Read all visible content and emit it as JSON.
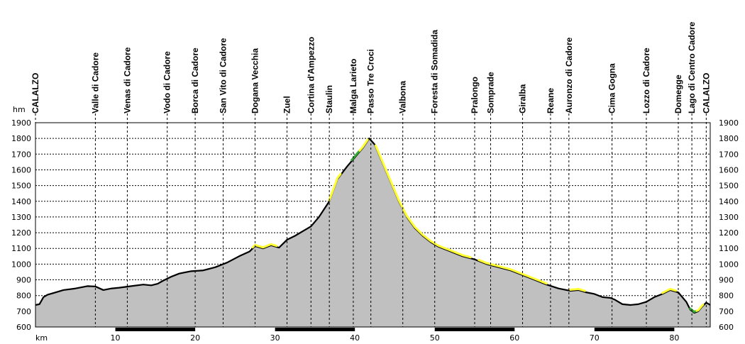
{
  "chart_data": {
    "type": "area",
    "title": "",
    "xlabel": "km",
    "ylabel": "hm",
    "xlim": [
      0,
      84.5
    ],
    "ylim": [
      600,
      1900
    ],
    "x_ticks": [
      10,
      20,
      30,
      40,
      50,
      60,
      70,
      80
    ],
    "y_ticks": [
      600,
      700,
      800,
      900,
      1000,
      1100,
      1200,
      1300,
      1400,
      1500,
      1600,
      1700,
      1800,
      1900
    ],
    "grid": "dashed",
    "fill_color": "#c0c0c0",
    "line_color": "#000000",
    "climb_color": "#ffff33",
    "flat_color": "#33aa33",
    "places": [
      {
        "km": 0,
        "name": "CALALZO"
      },
      {
        "km": 7.5,
        "name": "Valle di Cadore"
      },
      {
        "km": 11.5,
        "name": "Venas di Cadore"
      },
      {
        "km": 16.5,
        "name": "Vodo di Cadore"
      },
      {
        "km": 20.0,
        "name": "Borca di Cadore"
      },
      {
        "km": 23.5,
        "name": "San Vito di Cadore"
      },
      {
        "km": 27.5,
        "name": "Dogana Vecchia"
      },
      {
        "km": 31.5,
        "name": "Zuel"
      },
      {
        "km": 34.5,
        "name": "Cortina d'Ampezzo"
      },
      {
        "km": 36.8,
        "name": "Staulin"
      },
      {
        "km": 39.8,
        "name": "Malga Larieto"
      },
      {
        "km": 42.0,
        "name": "Passo Tre Croci"
      },
      {
        "km": 46.0,
        "name": "Valbona"
      },
      {
        "km": 50.0,
        "name": "Foresta di Somadida"
      },
      {
        "km": 55.0,
        "name": "Pralongo"
      },
      {
        "km": 57.0,
        "name": "Somprade"
      },
      {
        "km": 61.0,
        "name": "Giralba"
      },
      {
        "km": 64.5,
        "name": "Reane"
      },
      {
        "km": 66.8,
        "name": "Auronzo di Cadore"
      },
      {
        "km": 72.2,
        "name": "Cima Gogna"
      },
      {
        "km": 76.5,
        "name": "Lozzo di Cadore"
      },
      {
        "km": 80.5,
        "name": "Domegge"
      },
      {
        "km": 82.2,
        "name": "Lago di Centro Cadore"
      },
      {
        "km": 84.0,
        "name": "CALALZO"
      }
    ],
    "series": [
      {
        "name": "",
        "x": [
          0,
          0.5,
          1.0,
          1.5,
          2.5,
          3.5,
          5.0,
          6.5,
          7.5,
          8.5,
          9.5,
          10.5,
          12.0,
          13.5,
          14.5,
          15.3,
          16.0,
          17.0,
          18.0,
          19.5,
          21.0,
          22.5,
          24.0,
          25.5,
          26.8,
          27.5,
          28.5,
          29.5,
          30.5,
          31.5,
          32.5,
          33.5,
          34.5,
          35.5,
          36.8,
          37.8,
          39.0,
          40.0,
          41.0,
          41.8,
          42.5,
          43.5,
          44.5,
          45.5,
          46.5,
          47.5,
          48.5,
          49.5,
          50.5,
          52.0,
          53.5,
          55.0,
          56.5,
          58.0,
          59.5,
          61.0,
          62.5,
          64.0,
          65.5,
          67.0,
          68.0,
          69.0,
          70.0,
          71.0,
          72.0,
          72.5,
          73.5,
          74.5,
          75.5,
          76.5,
          77.5,
          78.5,
          79.5,
          80.5,
          81.5,
          82.0,
          82.5,
          83.0,
          83.5,
          84.0,
          84.5
        ],
        "y": [
          740,
          745,
          790,
          805,
          820,
          835,
          845,
          860,
          858,
          835,
          845,
          850,
          860,
          870,
          865,
          875,
          895,
          920,
          940,
          955,
          960,
          980,
          1010,
          1050,
          1080,
          1115,
          1100,
          1120,
          1105,
          1155,
          1180,
          1210,
          1240,
          1300,
          1400,
          1540,
          1620,
          1680,
          1740,
          1800,
          1760,
          1640,
          1520,
          1400,
          1300,
          1230,
          1180,
          1140,
          1110,
          1080,
          1050,
          1030,
          1000,
          980,
          960,
          930,
          900,
          870,
          845,
          830,
          835,
          820,
          810,
          790,
          785,
          775,
          745,
          740,
          745,
          760,
          790,
          810,
          835,
          820,
          760,
          710,
          690,
          700,
          730,
          755,
          740
        ]
      }
    ],
    "highlight_segments": [
      {
        "from": 27.2,
        "to": 30.2,
        "kind": "climb"
      },
      {
        "from": 36.8,
        "to": 38.2,
        "kind": "climb"
      },
      {
        "from": 39.6,
        "to": 40.6,
        "kind": "flat"
      },
      {
        "from": 40.6,
        "to": 41.6,
        "kind": "climb"
      },
      {
        "from": 42.6,
        "to": 54.5,
        "kind": "climb"
      },
      {
        "from": 55.5,
        "to": 64.0,
        "kind": "climb"
      },
      {
        "from": 67.0,
        "to": 68.8,
        "kind": "climb"
      },
      {
        "from": 78.5,
        "to": 80.2,
        "kind": "climb"
      },
      {
        "from": 82.0,
        "to": 82.8,
        "kind": "flat"
      },
      {
        "from": 82.8,
        "to": 83.6,
        "kind": "climb"
      }
    ]
  }
}
